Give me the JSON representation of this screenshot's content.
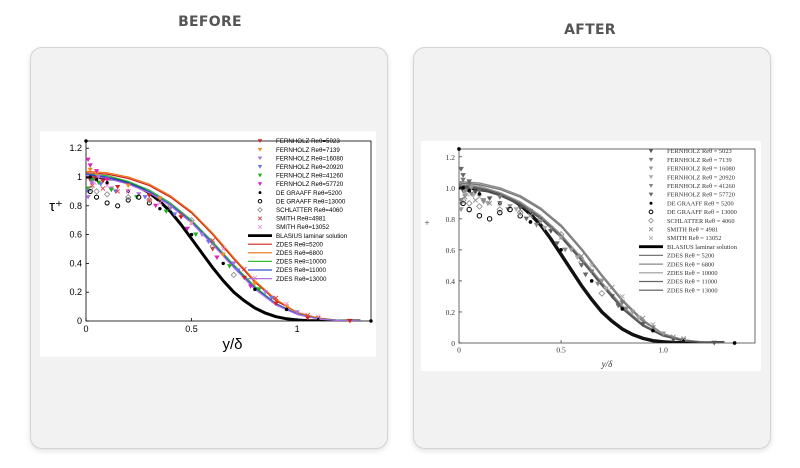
{
  "panels": {
    "before_title": "BEFORE",
    "after_title": "AFTER"
  },
  "chart_data": [
    {
      "type": "line",
      "panel": "before",
      "title": "",
      "xlabel": "y/δ",
      "ylabel": "τ⁺",
      "xlim": [
        0,
        1.35
      ],
      "ylim": [
        0,
        1.25
      ],
      "xticks": [
        0,
        0.5,
        1
      ],
      "yticks": [
        0,
        0.2,
        0.4,
        0.6,
        0.8,
        1,
        1.2
      ],
      "xtick_labels": [
        "0",
        "0.5",
        "1"
      ],
      "ytick_labels": [
        "0",
        "0.2",
        "0.4",
        "0.6",
        "0.8",
        "1",
        "1.2"
      ],
      "grid": false,
      "legend_position": "top-right",
      "scatter_series": [
        {
          "name": "FERNHOLZ Reθ=5023",
          "color": "#d62020",
          "marker": "tri-down",
          "x": [
            0.02,
            0.04,
            0.08,
            0.15,
            0.3,
            0.45,
            0.6,
            0.75,
            0.9,
            1.05,
            1.25
          ],
          "y": [
            0.98,
            0.99,
            0.97,
            0.93,
            0.87,
            0.72,
            0.5,
            0.3,
            0.12,
            0.02,
            0.0
          ]
        },
        {
          "name": "FERNHOLZ Reθ=7139",
          "color": "#f08a1c",
          "marker": "tri-down",
          "x": [
            0.02,
            0.05,
            0.1,
            0.2,
            0.35,
            0.5,
            0.65,
            0.8,
            0.95,
            1.1
          ],
          "y": [
            1.05,
            1.02,
            0.98,
            0.94,
            0.85,
            0.68,
            0.46,
            0.26,
            0.1,
            0.02
          ]
        },
        {
          "name": "FERNHOLZ Reθ=16080",
          "color": "#b070e0",
          "marker": "tri-down",
          "x": [
            0.01,
            0.03,
            0.06,
            0.12,
            0.25,
            0.4,
            0.55,
            0.7,
            0.85,
            1.0
          ],
          "y": [
            0.86,
            0.95,
            1.0,
            0.92,
            0.88,
            0.78,
            0.6,
            0.4,
            0.2,
            0.06
          ]
        },
        {
          "name": "FERNHOLZ Reθ=20920",
          "color": "#7070f0",
          "marker": "tri-down",
          "x": [
            0.01,
            0.03,
            0.07,
            0.14,
            0.28,
            0.42,
            0.58,
            0.72,
            0.88
          ],
          "y": [
            0.9,
            0.97,
            0.95,
            0.9,
            0.86,
            0.74,
            0.55,
            0.35,
            0.16
          ]
        },
        {
          "name": "FERNHOLZ Reθ=41260",
          "color": "#20b020",
          "marker": "tri-down",
          "x": [
            0.01,
            0.03,
            0.06,
            0.12,
            0.24,
            0.38,
            0.52,
            0.68,
            0.82
          ],
          "y": [
            0.92,
            0.98,
            0.96,
            0.91,
            0.86,
            0.76,
            0.6,
            0.38,
            0.22
          ]
        },
        {
          "name": "FERNHOLZ Reθ=57720",
          "color": "#e020c0",
          "marker": "tri-down",
          "x": [
            0.01,
            0.02,
            0.05,
            0.1,
            0.2,
            0.33,
            0.48,
            0.62,
            0.78
          ],
          "y": [
            1.12,
            1.08,
            1.04,
            0.98,
            0.9,
            0.8,
            0.64,
            0.44,
            0.24
          ]
        },
        {
          "name": "DE GRAAFF Reθ=5200",
          "color": "#000000",
          "marker": "dot",
          "x": [
            0.0,
            0.02,
            0.05,
            0.1,
            0.2,
            0.35,
            0.5,
            0.65,
            0.8,
            0.95,
            1.1,
            1.35
          ],
          "y": [
            1.25,
            1.0,
            0.98,
            0.96,
            0.9,
            0.78,
            0.6,
            0.4,
            0.22,
            0.08,
            0.02,
            0.0
          ]
        },
        {
          "name": "DE GRAAFF Reθ=13000",
          "color": "#000000",
          "marker": "open-circle",
          "x": [
            0.02,
            0.05,
            0.1,
            0.15,
            0.2,
            0.25,
            0.3
          ],
          "y": [
            0.9,
            0.86,
            0.82,
            0.8,
            0.84,
            0.86,
            0.82
          ]
        },
        {
          "name": "SCHLATTER Reθ=4060",
          "color": "#888888",
          "marker": "open-diamond",
          "x": [
            0.02,
            0.05,
            0.1,
            0.2,
            0.3,
            0.4,
            0.5,
            0.6,
            0.7
          ],
          "y": [
            0.92,
            0.9,
            0.88,
            0.86,
            0.84,
            0.8,
            0.7,
            0.52,
            0.32
          ]
        },
        {
          "name": "SMITH Reθ=4981",
          "color": "#e04040",
          "marker": "cross",
          "x": [
            0.03,
            0.08,
            0.15,
            0.3,
            0.45,
            0.6,
            0.75,
            0.9,
            1.05
          ],
          "y": [
            0.94,
            0.92,
            0.9,
            0.84,
            0.74,
            0.56,
            0.36,
            0.16,
            0.04
          ]
        },
        {
          "name": "SMITH Reθ=13052",
          "color": "#f090e0",
          "marker": "cross",
          "x": [
            0.04,
            0.1,
            0.2,
            0.35,
            0.5,
            0.65,
            0.8,
            0.95,
            1.1
          ],
          "y": [
            0.96,
            0.94,
            0.9,
            0.82,
            0.68,
            0.5,
            0.3,
            0.12,
            0.03
          ]
        }
      ],
      "line_series": [
        {
          "name": "BLASIUS laminar solution",
          "color": "#000000",
          "width": 3,
          "x": [
            0,
            0.05,
            0.1,
            0.15,
            0.2,
            0.25,
            0.3,
            0.35,
            0.4,
            0.45,
            0.5,
            0.55,
            0.6,
            0.65,
            0.7,
            0.75,
            0.8,
            0.85,
            0.9,
            0.95,
            1.0,
            1.05,
            1.1,
            1.2,
            1.3
          ],
          "y": [
            1.0,
            1.0,
            0.99,
            0.98,
            0.96,
            0.93,
            0.89,
            0.83,
            0.76,
            0.67,
            0.57,
            0.47,
            0.37,
            0.28,
            0.2,
            0.14,
            0.09,
            0.055,
            0.03,
            0.015,
            0.007,
            0.003,
            0.001,
            0.0,
            0.0
          ]
        },
        {
          "name": "ZDES Reθ=5200",
          "color": "#cc2020",
          "width": 1.2,
          "x": [
            0,
            0.1,
            0.2,
            0.3,
            0.4,
            0.5,
            0.6,
            0.7,
            0.8,
            0.9,
            1.0,
            1.1,
            1.2,
            1.3
          ],
          "y": [
            1.03,
            1.02,
            0.99,
            0.94,
            0.86,
            0.75,
            0.6,
            0.43,
            0.27,
            0.14,
            0.06,
            0.02,
            0.005,
            0.0
          ]
        },
        {
          "name": "ZDES Reθ=6800",
          "color": "#f07010",
          "width": 1.2,
          "x": [
            0,
            0.1,
            0.2,
            0.3,
            0.4,
            0.5,
            0.6,
            0.7,
            0.8,
            0.9,
            1.0,
            1.1,
            1.2,
            1.3
          ],
          "y": [
            1.04,
            1.03,
            1.0,
            0.95,
            0.87,
            0.76,
            0.61,
            0.44,
            0.28,
            0.15,
            0.06,
            0.02,
            0.005,
            0.0
          ]
        },
        {
          "name": "ZDES Reθ=10000",
          "color": "#30c030",
          "width": 1.2,
          "x": [
            0,
            0.1,
            0.2,
            0.3,
            0.4,
            0.5,
            0.6,
            0.7,
            0.8,
            0.9,
            1.0,
            1.1,
            1.2,
            1.3
          ],
          "y": [
            1.02,
            1.01,
            0.97,
            0.91,
            0.82,
            0.7,
            0.55,
            0.39,
            0.24,
            0.12,
            0.05,
            0.015,
            0.004,
            0.0
          ]
        },
        {
          "name": "ZDES Reθ=11000",
          "color": "#3050d0",
          "width": 1.2,
          "x": [
            0,
            0.1,
            0.2,
            0.3,
            0.4,
            0.5,
            0.6,
            0.7,
            0.8,
            0.9,
            1.0,
            1.1,
            1.2,
            1.3
          ],
          "y": [
            1.02,
            1.0,
            0.96,
            0.9,
            0.81,
            0.69,
            0.54,
            0.38,
            0.23,
            0.12,
            0.05,
            0.015,
            0.004,
            0.0
          ]
        },
        {
          "name": "ZDES Reθ=13000",
          "color": "#b070e0",
          "width": 1.2,
          "x": [
            0,
            0.1,
            0.2,
            0.3,
            0.4,
            0.5,
            0.6,
            0.7,
            0.8,
            0.9,
            1.0,
            1.1,
            1.2,
            1.3
          ],
          "y": [
            1.01,
            0.99,
            0.95,
            0.89,
            0.8,
            0.68,
            0.53,
            0.37,
            0.22,
            0.11,
            0.045,
            0.013,
            0.003,
            0.0
          ]
        }
      ]
    },
    {
      "type": "line",
      "panel": "after",
      "title": "",
      "xlabel": "y/δ",
      "ylabel": "+",
      "xlim": [
        0,
        1.45
      ],
      "ylim": [
        0,
        1.25
      ],
      "xticks": [
        0,
        0.5,
        1.0
      ],
      "yticks": [
        0,
        0.2,
        0.4,
        0.6,
        0.8,
        1.0,
        1.2
      ],
      "xtick_labels": [
        "0",
        "0.5",
        "1.0"
      ],
      "ytick_labels": [
        "0",
        "0.2",
        "0.4",
        "0.6",
        "0.8",
        "1.0",
        "1.2"
      ],
      "grid": false,
      "legend_position": "top-right",
      "palette": "grayscale",
      "legend": [
        {
          "name": "FERNHOLZ Reθ = 5023",
          "marker": "tri-down",
          "color": "#555555"
        },
        {
          "name": "FERNHOLZ Reθ = 7139",
          "marker": "tri-down",
          "color": "#777777"
        },
        {
          "name": "FERNHOLZ Reθ = 16080",
          "marker": "tri-down",
          "color": "#999999"
        },
        {
          "name": "FERNHOLZ Reθ = 20920",
          "marker": "tri-down",
          "color": "#aaaaaa"
        },
        {
          "name": "FERNHOLZ Reθ = 41260",
          "marker": "tri-down",
          "color": "#888888"
        },
        {
          "name": "FERNHOLZ Reθ = 57720",
          "marker": "tri-down",
          "color": "#666666"
        },
        {
          "name": "DE GRAAFF Reθ = 5200",
          "marker": "dot",
          "color": "#000000"
        },
        {
          "name": "DE GRAAFF Reθ = 13000",
          "marker": "open-circle",
          "color": "#000000"
        },
        {
          "name": "SCHLATTER Reθ = 4060",
          "marker": "open-diamond",
          "color": "#888888"
        },
        {
          "name": "SMITH Reθ = 4981",
          "marker": "cross",
          "color": "#888888"
        },
        {
          "name": "SMITH Reθ = 13052",
          "marker": "cross",
          "color": "#aaaaaa"
        },
        {
          "name": "BLASIUS laminar solution",
          "marker": "line-thick",
          "color": "#000000"
        },
        {
          "name": "ZDES Reθ = 5200",
          "marker": "line",
          "color": "#777777"
        },
        {
          "name": "ZDES Reθ = 6800",
          "marker": "line",
          "color": "#888888"
        },
        {
          "name": "ZDES Reθ = 10000",
          "marker": "line",
          "color": "#999999"
        },
        {
          "name": "ZDES Reθ = 11000",
          "marker": "line",
          "color": "#666666"
        },
        {
          "name": "ZDES Reθ = 13000",
          "marker": "line",
          "color": "#555555"
        }
      ]
    }
  ]
}
